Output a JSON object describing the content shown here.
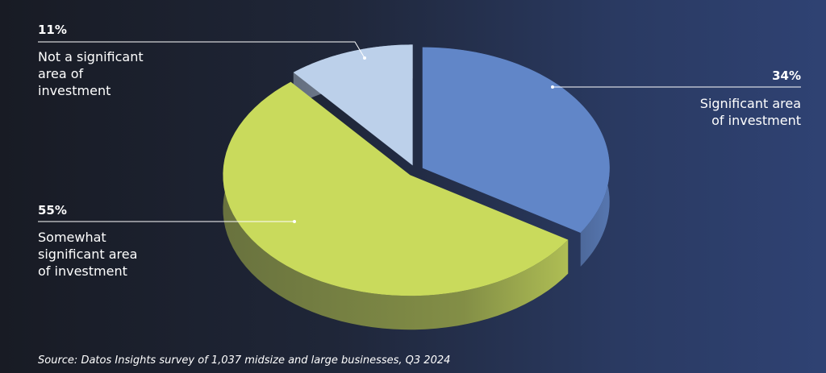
{
  "chart_data": {
    "type": "pie",
    "categories": [
      "Significant area of investment",
      "Somewhat significant area of investment",
      "Not a significant area of investment"
    ],
    "values": [
      34,
      55,
      11
    ],
    "value_labels": [
      "34%",
      "55%",
      "11%"
    ],
    "colors": [
      "#6186c8",
      "#c9da5c",
      "#bcd0ea"
    ],
    "source": "Source: Datos Insights survey of 1,037 midsize and large businesses, Q3 2024"
  }
}
